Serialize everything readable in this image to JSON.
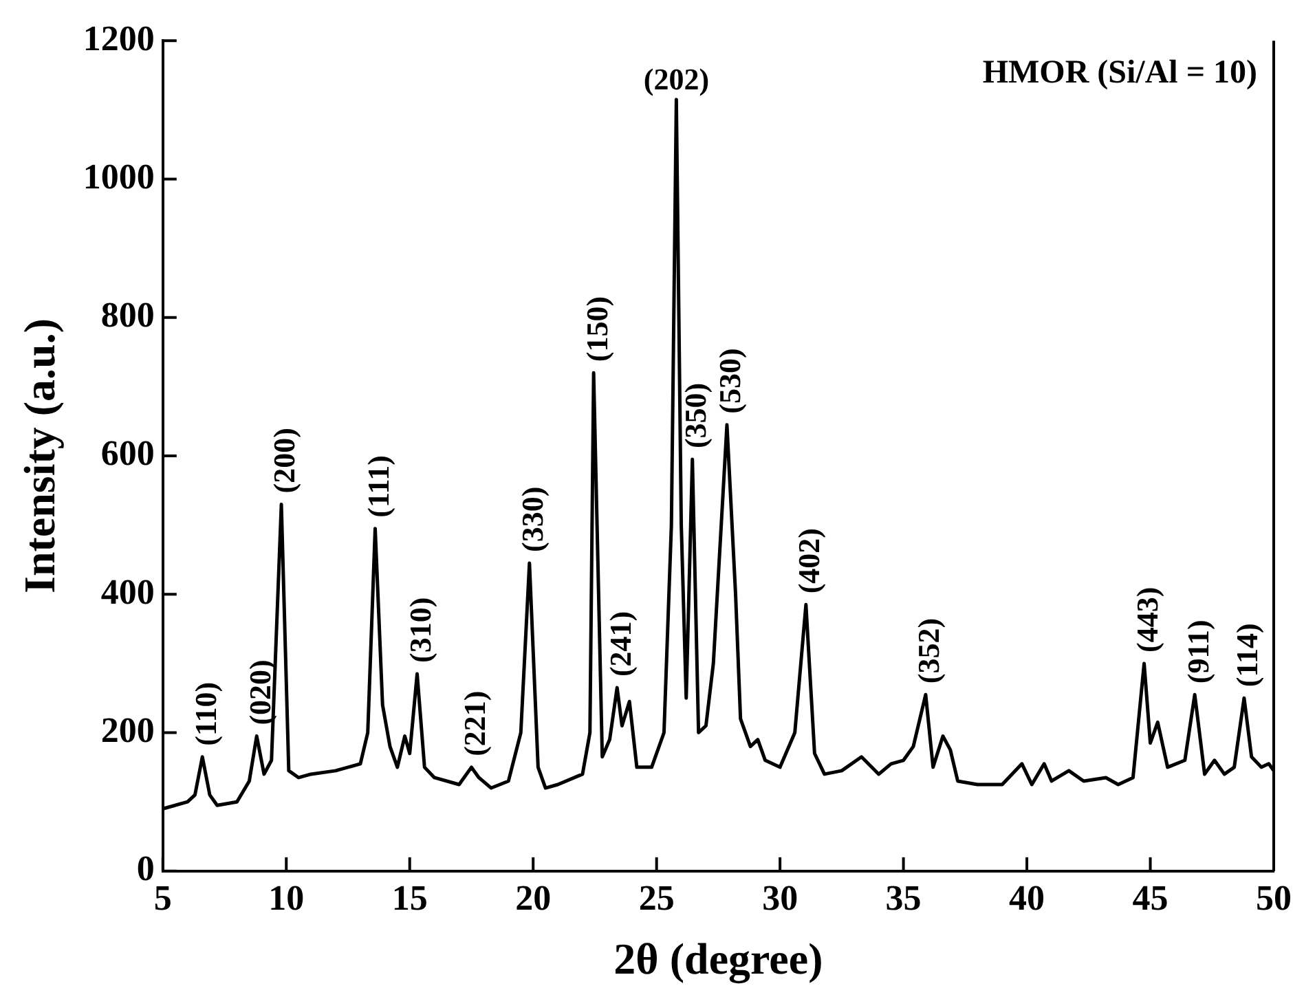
{
  "chart_data": {
    "type": "line",
    "xlabel": "2θ (degree)",
    "ylabel": "Intensity (a.u.)",
    "xlim": [
      5,
      50
    ],
    "xticks": [
      5,
      10,
      15,
      20,
      25,
      30,
      35,
      40,
      45,
      50
    ],
    "ylim": [
      0,
      1200
    ],
    "yticks": [
      0,
      200,
      400,
      600,
      800,
      1000,
      1200
    ],
    "grid": false,
    "legend": false,
    "marker": "none",
    "line_style": "solid",
    "series": [
      {
        "color": "#000000",
        "x": [
          5,
          6,
          6.3,
          6.6,
          6.9,
          7.2,
          8,
          8.5,
          8.8,
          9.1,
          9.4,
          9.8,
          10.1,
          10.5,
          11,
          12,
          13,
          13.3,
          13.6,
          13.9,
          14.2,
          14.5,
          14.8,
          15,
          15.3,
          15.6,
          16,
          17,
          17.5,
          17.8,
          18.3,
          19,
          19.5,
          19.85,
          20.2,
          20.5,
          21,
          22,
          22.3,
          22.45,
          22.8,
          23.1,
          23.4,
          23.6,
          23.9,
          24.2,
          24.8,
          25.3,
          25.6,
          25.8,
          26,
          26.2,
          26.45,
          26.7,
          27,
          27.3,
          27.85,
          28.2,
          28.4,
          28.8,
          29.1,
          29.4,
          30,
          30.6,
          31.05,
          31.4,
          31.8,
          32.5,
          33.3,
          34,
          34.5,
          35,
          35.4,
          35.9,
          36.2,
          36.6,
          36.9,
          37.2,
          38,
          39,
          39.8,
          40.2,
          40.7,
          41,
          41.7,
          42.3,
          43.2,
          43.7,
          44.3,
          44.75,
          45,
          45.3,
          45.7,
          46.4,
          46.8,
          47.2,
          47.6,
          48,
          48.4,
          48.8,
          49.1,
          49.5,
          49.8,
          50
        ],
        "values": [
          90,
          100,
          110,
          165,
          110,
          95,
          100,
          130,
          195,
          140,
          160,
          530,
          145,
          135,
          140,
          145,
          155,
          200,
          495,
          240,
          180,
          150,
          195,
          170,
          285,
          150,
          135,
          125,
          150,
          135,
          120,
          130,
          200,
          445,
          150,
          120,
          125,
          140,
          200,
          720,
          165,
          190,
          265,
          210,
          245,
          150,
          150,
          200,
          500,
          1115,
          500,
          250,
          595,
          200,
          210,
          300,
          645,
          400,
          220,
          180,
          190,
          160,
          150,
          200,
          385,
          170,
          140,
          145,
          165,
          140,
          155,
          160,
          180,
          255,
          150,
          195,
          175,
          130,
          125,
          125,
          155,
          125,
          155,
          130,
          145,
          130,
          135,
          125,
          135,
          300,
          185,
          215,
          150,
          160,
          255,
          140,
          160,
          140,
          150,
          250,
          165,
          150,
          155,
          145
        ]
      }
    ],
    "annotations": [
      "HMOR (Si/Al = 10)",
      {
        "text": "(110)",
        "x": 6.6,
        "y": 165
      },
      {
        "text": "(020)",
        "x": 8.8,
        "y": 195
      },
      {
        "text": "(200)",
        "x": 9.8,
        "y": 530
      },
      {
        "text": "(111)",
        "x": 13.6,
        "y": 495
      },
      {
        "text": "(310)",
        "x": 15.3,
        "y": 285
      },
      {
        "text": "(221)",
        "x": 17.5,
        "y": 150
      },
      {
        "text": "(330)",
        "x": 19.85,
        "y": 445
      },
      {
        "text": "(150)",
        "x": 22.45,
        "y": 720
      },
      {
        "text": "(241)",
        "x": 23.4,
        "y": 265
      },
      {
        "text": "(202)",
        "x": 25.8,
        "y": 1115
      },
      {
        "text": "(350)",
        "x": 26.45,
        "y": 595
      },
      {
        "text": "(530)",
        "x": 27.85,
        "y": 645
      },
      {
        "text": "(402)",
        "x": 31.05,
        "y": 385
      },
      {
        "text": "(352)",
        "x": 35.9,
        "y": 255
      },
      {
        "text": "(443)",
        "x": 44.75,
        "y": 300
      },
      {
        "text": "(911)",
        "x": 46.8,
        "y": 255
      },
      {
        "text": "(114)",
        "x": 48.8,
        "y": 250
      }
    ]
  }
}
